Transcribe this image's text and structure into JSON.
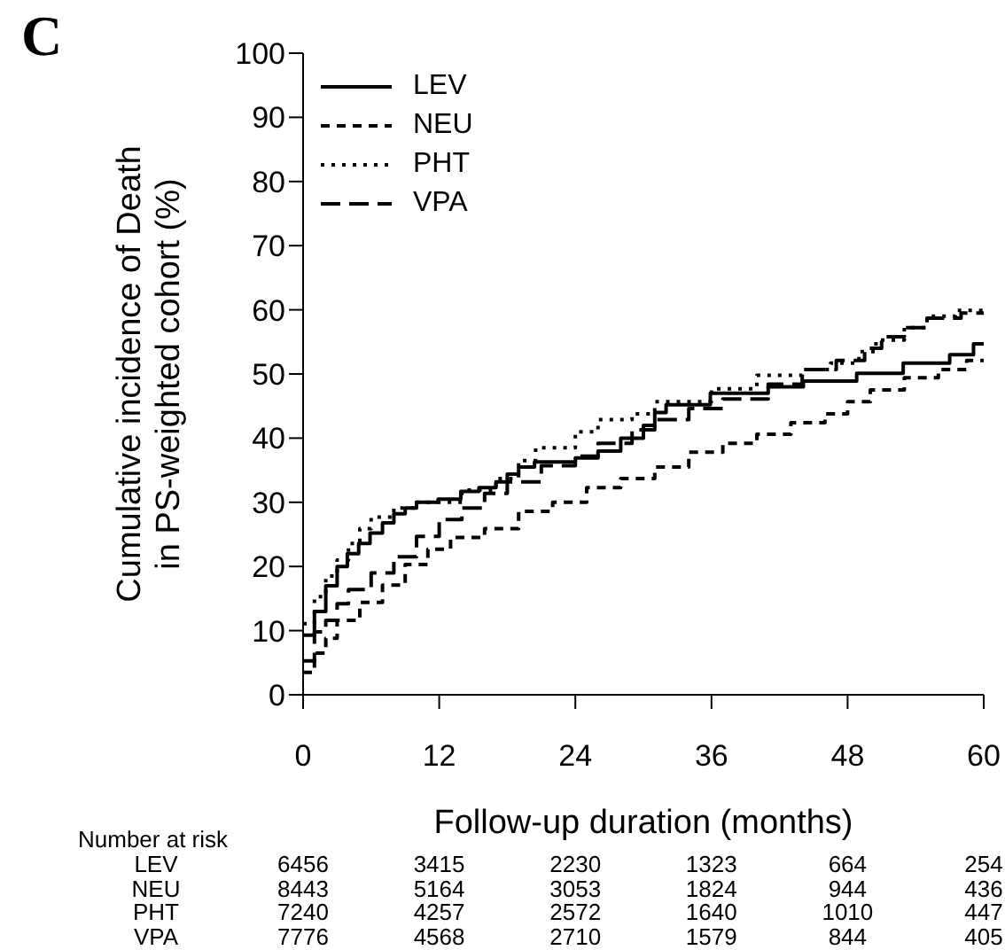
{
  "chart_data": {
    "type": "step",
    "xlabel": "Follow-up duration (months)",
    "ylabel": "Cumulative incidence of Death\nin PS-weighted cohort (%)",
    "xlim": [
      0,
      60
    ],
    "xticks": [
      0,
      12,
      24,
      36,
      48,
      60
    ],
    "ylim": [
      0,
      100
    ],
    "yticks": [
      0,
      10,
      20,
      30,
      40,
      50,
      60,
      70,
      80,
      90,
      100
    ],
    "grid": false,
    "legend": "top left",
    "series": [
      {
        "name": "LEV",
        "color": "#000000",
        "line_style": "solid",
        "x": [
          0,
          1,
          2,
          3,
          3.9,
          4.9,
          5.9,
          7,
          8,
          9,
          10,
          11.9,
          13.9,
          15.5,
          17,
          18,
          19,
          20.4,
          24,
          26,
          28,
          30,
          31,
          32,
          35.9,
          41,
          44.1,
          48.8,
          52.9,
          57,
          59.1,
          60
        ],
        "values": [
          9.3,
          13,
          17,
          20,
          22,
          23.6,
          25.2,
          26.8,
          28.2,
          29.1,
          30,
          30.5,
          31.7,
          32.3,
          33.2,
          34.4,
          35.5,
          36.3,
          36.9,
          38,
          40,
          42,
          44,
          45.2,
          47,
          48,
          48.9,
          50.1,
          51.7,
          53,
          54.7,
          54.7
        ]
      },
      {
        "name": "NEU",
        "color": "#000000",
        "line_style": "dashed",
        "x": [
          0,
          1,
          2,
          3,
          5,
          7,
          9,
          11,
          13,
          16,
          19,
          22,
          25,
          28,
          31,
          34,
          37,
          40,
          43,
          46,
          48,
          50,
          53,
          56,
          58.5,
          60
        ],
        "values": [
          3.5,
          6.5,
          8.8,
          11.6,
          14.4,
          17.1,
          20.3,
          22.7,
          24.5,
          25.9,
          28.6,
          30,
          32.3,
          33.7,
          35.5,
          37.8,
          39.2,
          40.6,
          42.4,
          43.8,
          45.7,
          47.5,
          49.4,
          50.7,
          52.1,
          52.1
        ]
      },
      {
        "name": "PHT",
        "color": "#000000",
        "line_style": "dotted",
        "x": [
          0,
          1,
          2,
          3,
          4,
          5,
          6,
          8,
          10,
          14,
          17,
          19,
          20.5,
          24,
          26,
          29,
          31,
          36,
          40,
          44,
          46.5,
          49,
          50.5,
          53,
          55,
          57.5,
          60
        ],
        "values": [
          11.1,
          15.3,
          18.5,
          21,
          23.6,
          25.9,
          27.7,
          29.1,
          30,
          31.9,
          33.7,
          36.5,
          38.5,
          41,
          42.9,
          43.8,
          45.7,
          47.7,
          49.8,
          50.7,
          51.7,
          53.5,
          55.3,
          57.2,
          59,
          59.9,
          59.9
        ]
      },
      {
        "name": "VPA",
        "color": "#000000",
        "line_style": "dashed",
        "x": [
          0,
          1,
          2,
          3,
          4,
          6,
          8,
          10,
          12,
          14,
          16,
          18,
          21,
          24,
          26,
          29,
          31,
          34,
          37,
          41,
          44,
          47,
          49.5,
          51,
          53,
          55,
          58,
          60
        ],
        "values": [
          5.3,
          9.8,
          11.6,
          14.2,
          16.4,
          19,
          21.5,
          24.7,
          27.3,
          29.1,
          31.4,
          33.2,
          35.7,
          37.2,
          39.2,
          41.3,
          42.9,
          44.6,
          46.1,
          48.4,
          50.7,
          52.1,
          54,
          55.8,
          57.2,
          58.7,
          59.5,
          59.5
        ]
      }
    ],
    "annotations": [
      "C",
      "Number at risk",
      "LEV",
      "6456",
      "3415",
      "2230",
      "1323",
      "664",
      "254",
      "NEU",
      "8443",
      "5164",
      "3053",
      "1824",
      "944",
      "436",
      "PHT",
      "7240",
      "4257",
      "2572",
      "1640",
      "1010",
      "447",
      "VPA",
      "7776",
      "4568",
      "2710",
      "1579",
      "844",
      "405"
    ]
  }
}
